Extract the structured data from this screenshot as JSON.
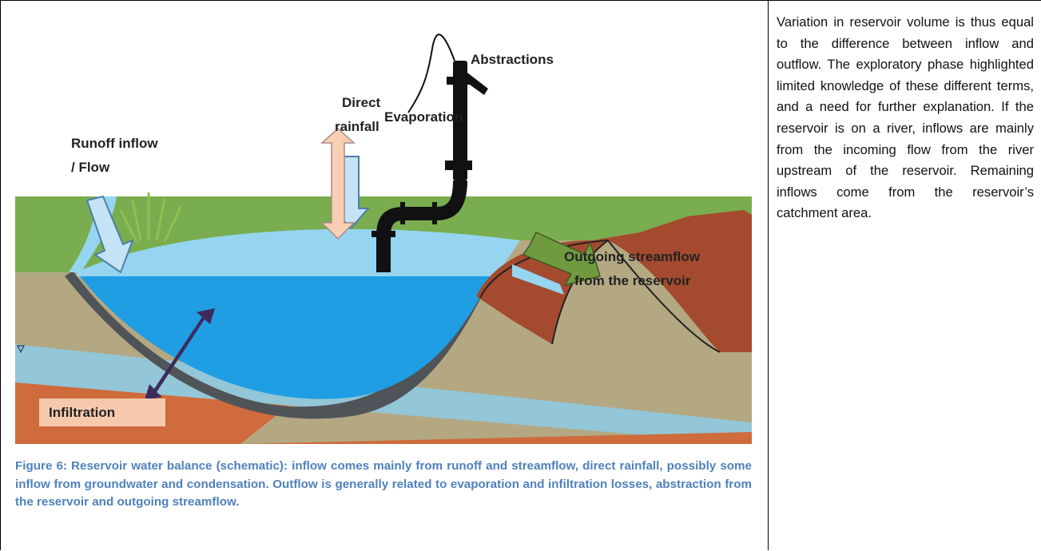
{
  "figure": {
    "labels": {
      "abstractions": "Abstractions",
      "direct_rainfall": [
        "Direct",
        "rainfall"
      ],
      "evaporation": "Evaporation",
      "runoff": [
        "Runoff inflow",
        "/ Flow"
      ],
      "outgoing": [
        "Outgoing streamflow",
        "from the reservoir"
      ],
      "infiltration": "Infiltration"
    },
    "caption": "Figure 6: Reservoir water balance (schematic): inflow comes mainly from runoff and streamflow, direct rainfall, possibly some inflow from groundwater and condensation. Outflow is generally related to evaporation and infiltration losses, abstraction from the reservoir and outgoing streamflow."
  },
  "text": "Variation in reservoir volume is thus equal to the difference between inflow and outflow. The exploratory phase highlighted limited knowledge of these different terms, and a need for further explanation. If the reservoir is on a river, inflows are mainly from the incoming flow from the river upstream of the reservoir. Remaining inflows come from the reservoir’s catchment area."
}
